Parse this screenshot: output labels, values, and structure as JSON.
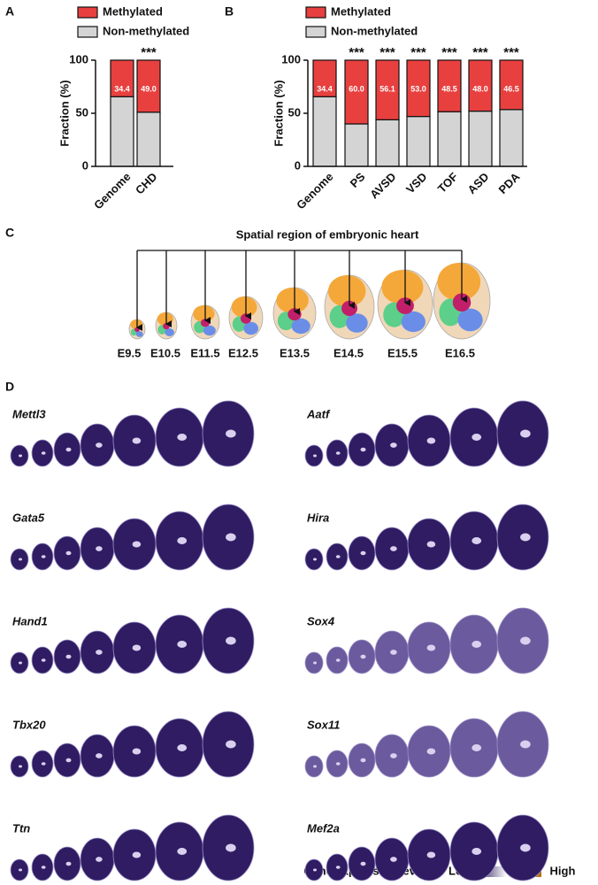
{
  "panel_labels": [
    "A",
    "B",
    "C",
    "D"
  ],
  "chart_data": [
    {
      "type": "stacked_bar",
      "categories": [
        "Genome",
        "CHD"
      ],
      "series": [
        {
          "name": "Non-methylated",
          "color": "#d4d4d4",
          "values": [
            65.6,
            51.0
          ]
        },
        {
          "name": "Methylated",
          "color": "#e8403f",
          "values": [
            34.4,
            49.0
          ],
          "value_labels": [
            "34.4",
            "49.0"
          ]
        }
      ],
      "significance": [
        null,
        "***"
      ],
      "ylabel": "Fraction (%)",
      "ylim": [
        0,
        100
      ],
      "yticks": [
        0,
        50,
        100
      ]
    },
    {
      "type": "stacked_bar",
      "categories": [
        "Genome",
        "PS",
        "AVSD",
        "VSD",
        "TOF",
        "ASD",
        "PDA"
      ],
      "series": [
        {
          "name": "Non-methylated",
          "color": "#d4d4d4",
          "values": [
            65.6,
            40.0,
            43.9,
            47.0,
            51.5,
            52.0,
            53.5
          ]
        },
        {
          "name": "Methylated",
          "color": "#e8403f",
          "values": [
            34.4,
            60.0,
            56.1,
            53.0,
            48.5,
            48.0,
            46.5
          ],
          "value_labels": [
            "34.4",
            "60.0",
            "56.1",
            "53.0",
            "48.5",
            "48.0",
            "46.5"
          ]
        }
      ],
      "significance": [
        null,
        "***",
        "***",
        "***",
        "***",
        "***",
        "***"
      ],
      "ylabel": "Fraction (%)",
      "ylim": [
        0,
        100
      ],
      "yticks": [
        0,
        50,
        100
      ]
    }
  ],
  "embryo_panel": {
    "title": "Spatial region of embryonic heart",
    "stages": [
      "E9.5",
      "E10.5",
      "E11.5",
      "E12.5",
      "E13.5",
      "E14.5",
      "E15.5",
      "E16.5"
    ]
  },
  "expression_panel": {
    "genes": [
      "Mettl3",
      "Aatf",
      "Gata5",
      "Hira",
      "Hand1",
      "Sox4",
      "Tbx20",
      "Sox11",
      "Ttn",
      "Mef2a"
    ],
    "legend": {
      "title": "Gene expression level",
      "low": "Low",
      "high": "High"
    }
  }
}
